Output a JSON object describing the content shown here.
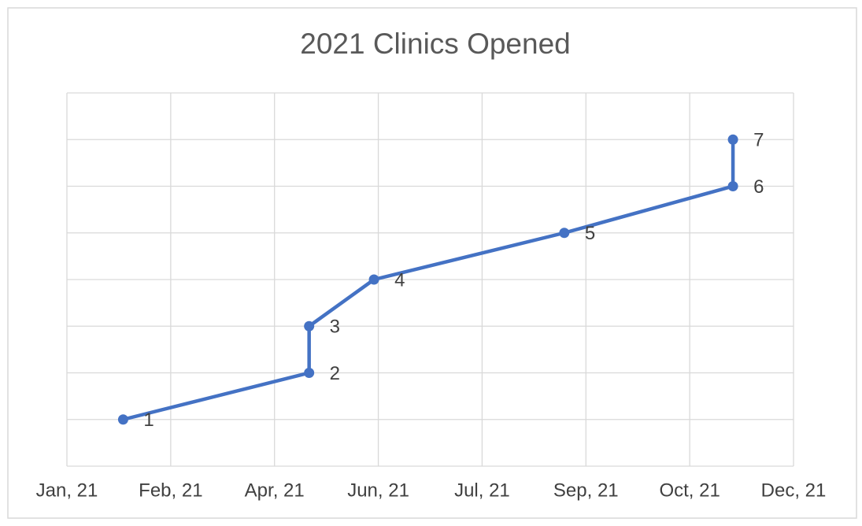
{
  "chart_data": {
    "type": "line",
    "title": "2021 Clinics Opened",
    "x": [
      36,
      122,
      122,
      152,
      240,
      318,
      318
    ],
    "values": [
      1,
      2,
      3,
      4,
      5,
      6,
      7
    ],
    "color": "#4472c4",
    "xlim": [
      10,
      346
    ],
    "xticks": [
      {
        "value": 10,
        "label": "Jan, 21"
      },
      {
        "value": 58,
        "label": "Feb, 21"
      },
      {
        "value": 106,
        "label": "Apr, 21"
      },
      {
        "value": 154,
        "label": "Jun, 21"
      },
      {
        "value": 202,
        "label": "Jul, 21"
      },
      {
        "value": 250,
        "label": "Sep, 21"
      },
      {
        "value": 298,
        "label": "Oct, 21"
      },
      {
        "value": 346,
        "label": "Dec, 21"
      }
    ],
    "ylim": [
      0,
      8
    ],
    "yticks": [
      0,
      1,
      2,
      3,
      4,
      5,
      6,
      7,
      8
    ],
    "grid": true
  }
}
